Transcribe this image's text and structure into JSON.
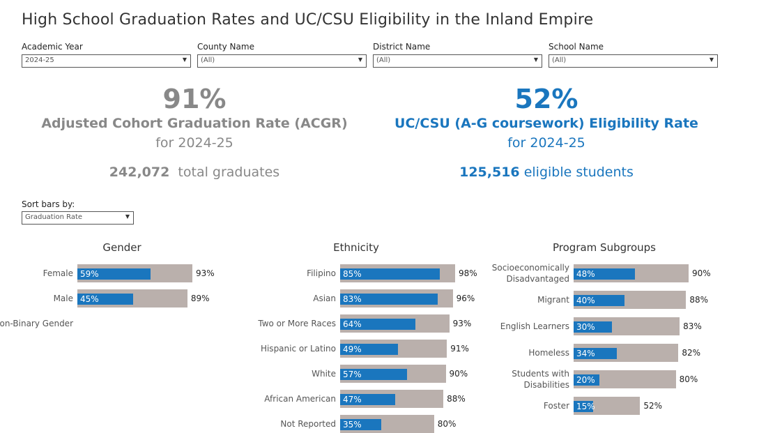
{
  "title": "High School Graduation Rates and UC/CSU Eligibility in the Inland Empire",
  "filters": [
    {
      "label": "Academic Year",
      "value": "2024-25"
    },
    {
      "label": "County Name",
      "value": "(All)"
    },
    {
      "label": "District Name",
      "value": "(All)"
    },
    {
      "label": "School Name",
      "value": "(All)"
    }
  ],
  "kpi_left": {
    "value": "91%",
    "label": "Adjusted Cohort Graduation Rate (ACGR)",
    "period": "for 2024-25",
    "count": "242,072",
    "count_label": "total graduates"
  },
  "kpi_right": {
    "value": "52%",
    "label": "UC/CSU (A-G coursework) Eligibility Rate",
    "period": "for 2024-25",
    "count": "125,516",
    "count_label": "eligible students"
  },
  "sort": {
    "label": "Sort bars by:",
    "value": "Graduation Rate"
  },
  "colors": {
    "graduation": "#bab0ac",
    "eligibility": "#1a76be",
    "kpi_grey": "#888888"
  },
  "chart_data": [
    {
      "type": "bar",
      "title": "Gender",
      "categories": [
        "Female",
        "Male",
        "Non-Binary Gender"
      ],
      "series": [
        {
          "values": [
            93,
            89,
            null
          ]
        },
        {
          "values": [
            59,
            45,
            null
          ]
        }
      ]
    },
    {
      "type": "bar",
      "title": "Ethnicity",
      "categories": [
        "Filipino",
        "Asian",
        "Two or More Races",
        "Hispanic or Latino",
        "White",
        "African American",
        "Not Reported"
      ],
      "series": [
        {
          "values": [
            98,
            96,
            93,
            91,
            90,
            88,
            80
          ]
        },
        {
          "values": [
            85,
            83,
            64,
            49,
            57,
            47,
            35
          ]
        }
      ]
    },
    {
      "type": "bar",
      "title": "Program Subgroups",
      "categories": [
        "Socioeconomically Disadvantaged",
        "Migrant",
        "English Learners",
        "Homeless",
        "Students with Disabilities",
        "Foster"
      ],
      "series": [
        {
          "values": [
            90,
            88,
            83,
            82,
            80,
            52
          ]
        },
        {
          "values": [
            48,
            40,
            30,
            34,
            20,
            15
          ]
        }
      ]
    }
  ]
}
